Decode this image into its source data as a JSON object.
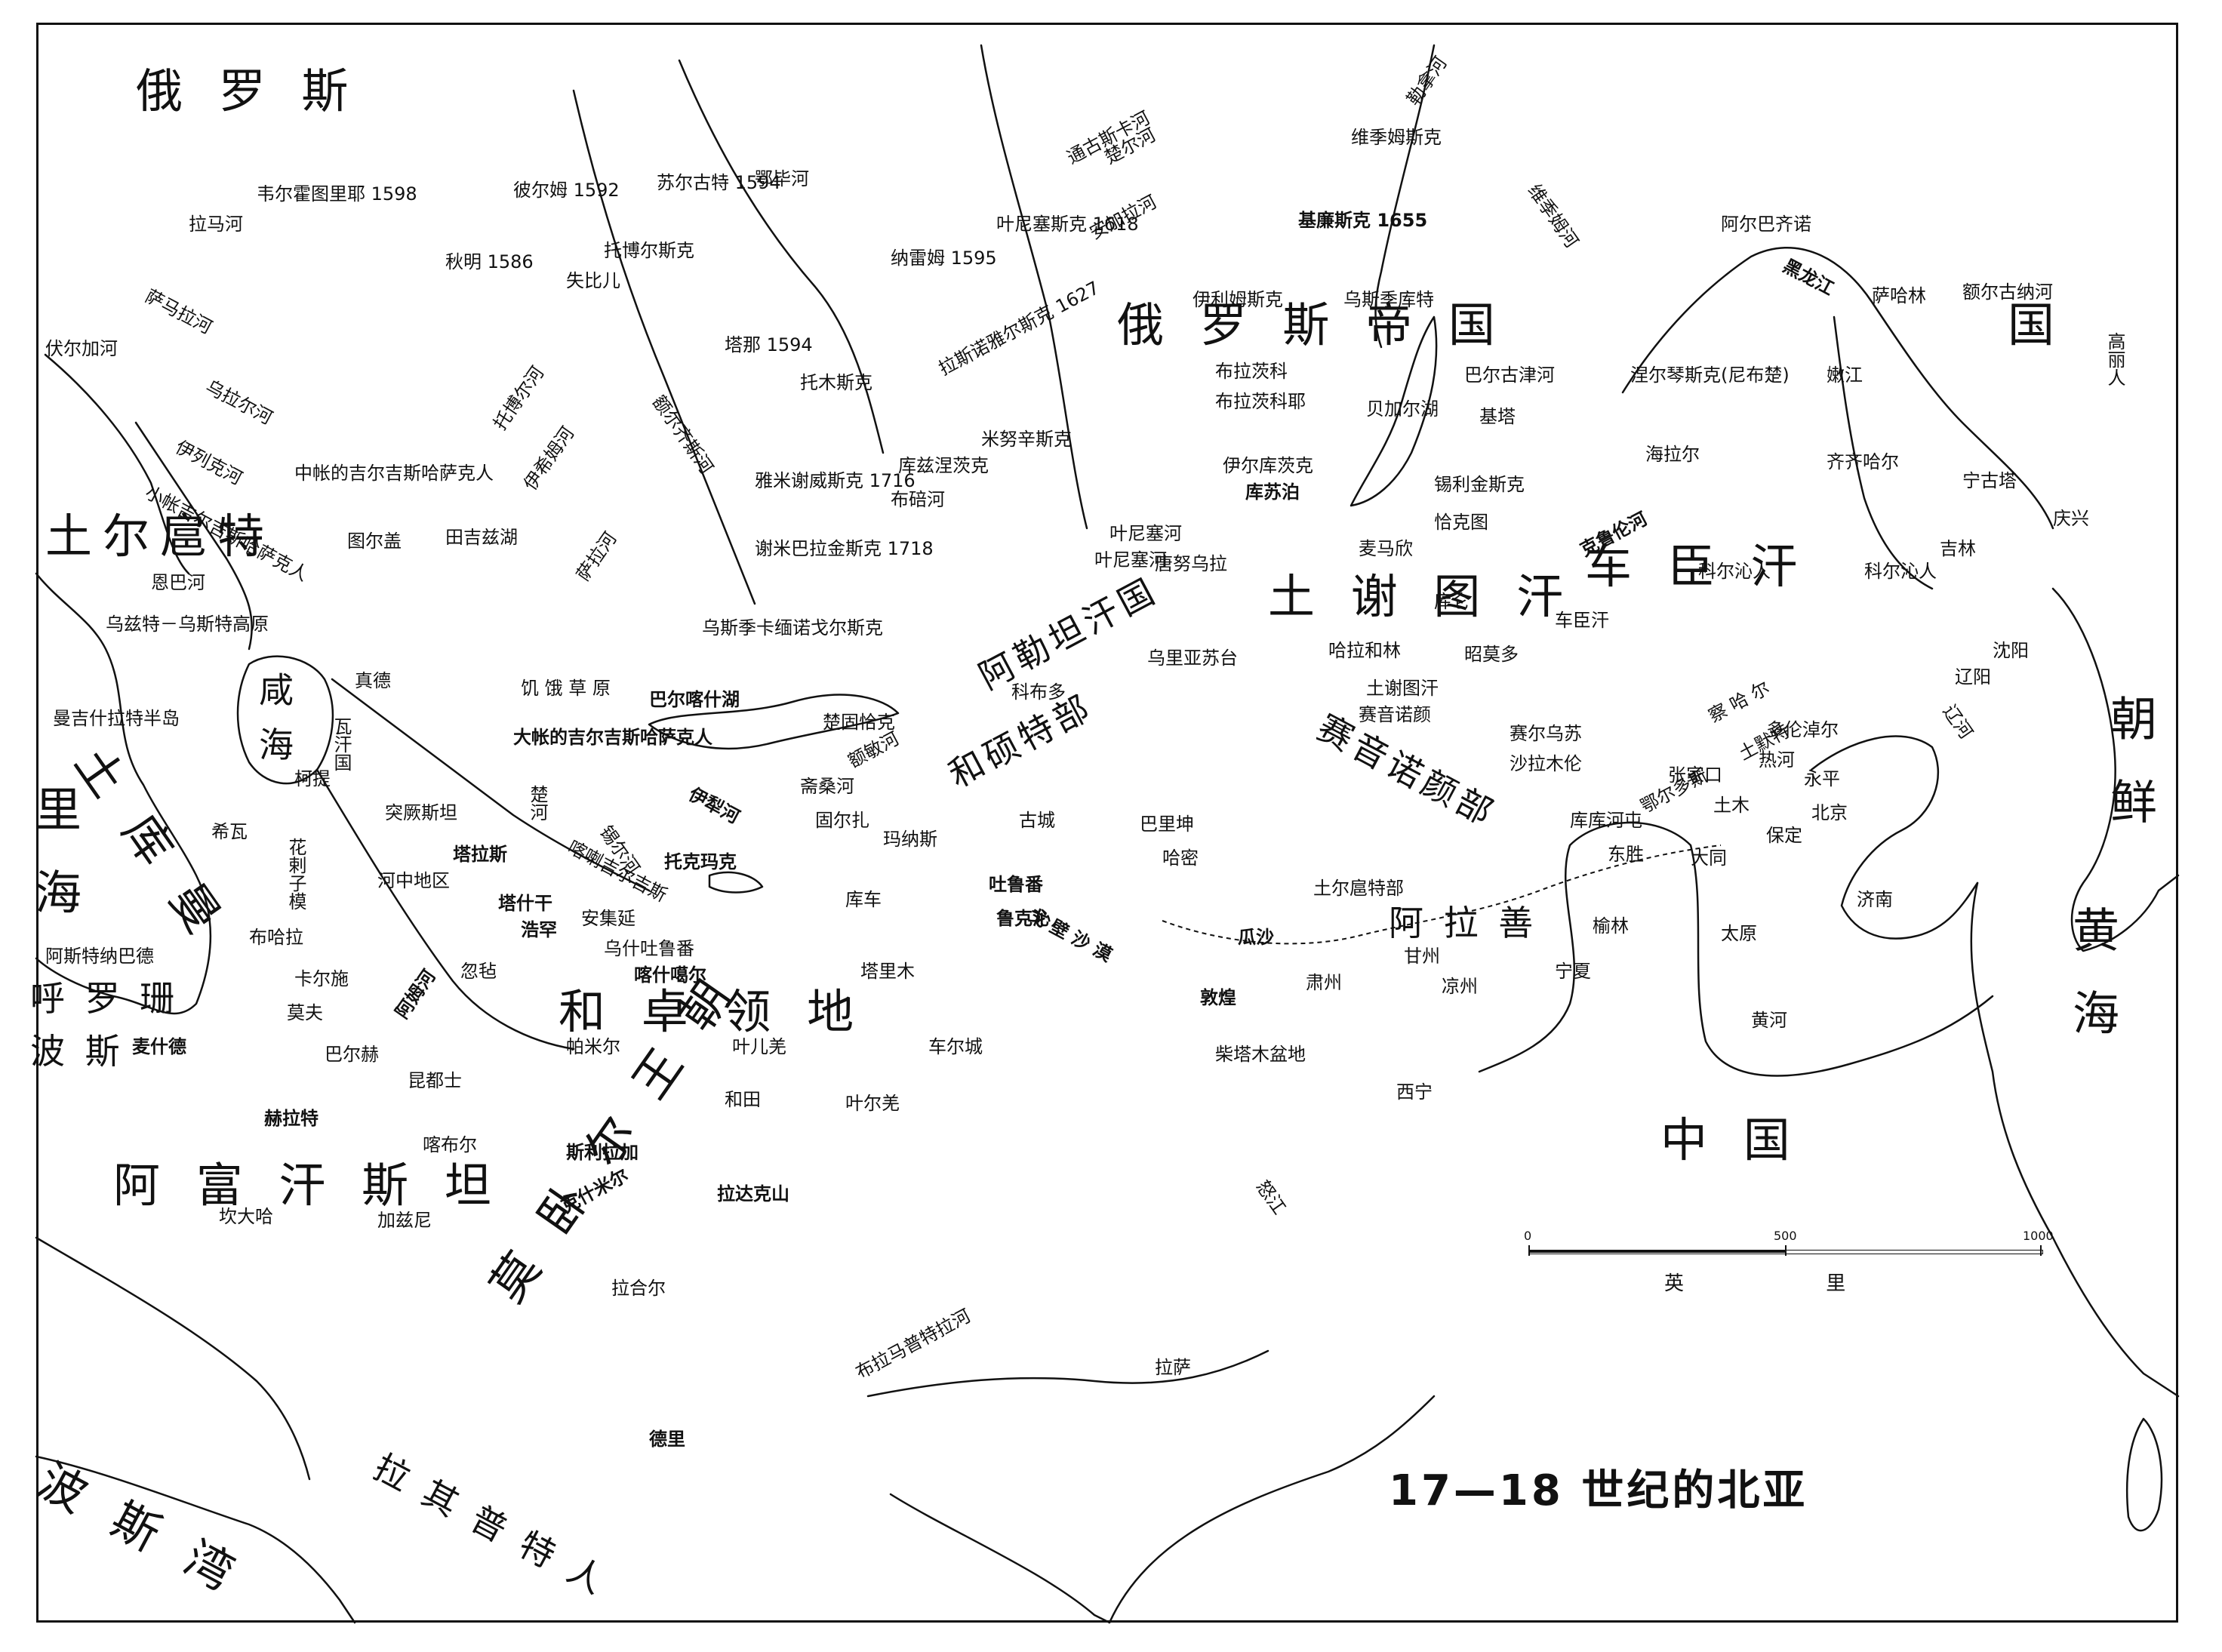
{
  "title": "17—18 世纪的北亚",
  "scale": {
    "ticks": [
      "0",
      "500",
      "1000"
    ],
    "unit": "英 里"
  },
  "regions": [
    {
      "id": "russia-nw",
      "text": "俄 罗 斯"
    },
    {
      "id": "russia-empire",
      "text": "俄 罗 斯 帝 国"
    },
    {
      "id": "qing-heilong",
      "text": "国"
    },
    {
      "id": "turgut",
      "text": "土尔扈特"
    },
    {
      "id": "chechen",
      "text": "车 臣 汗"
    },
    {
      "id": "tushetu",
      "text": "土 谢 图 汗"
    },
    {
      "id": "altan",
      "text": "阿勒坦汗国"
    },
    {
      "id": "khoshut",
      "text": "和硕特部"
    },
    {
      "id": "sayin",
      "text": "赛音诺颜部"
    },
    {
      "id": "kazakh-steppe",
      "text": "饥 饿 草 原"
    },
    {
      "id": "khojo",
      "text": "和 卓 领 地"
    },
    {
      "id": "turkmen",
      "text": "土 库 曼"
    },
    {
      "id": "khorasan",
      "text": "呼 罗 珊"
    },
    {
      "id": "persia-n",
      "text": "波 斯"
    },
    {
      "id": "afghan",
      "text": "阿 富 汗 斯 坦"
    },
    {
      "id": "mughal",
      "text": "莫 卧 尔 王 朝"
    },
    {
      "id": "rajput",
      "text": "拉 其 普 特 人"
    },
    {
      "id": "persian-gulf",
      "text": "波 斯 湾"
    },
    {
      "id": "china",
      "text": "中 国"
    },
    {
      "id": "korea",
      "text": "朝 鲜"
    },
    {
      "id": "yellow-sea",
      "text": "黄 海"
    },
    {
      "id": "caspian",
      "text": "里 海"
    },
    {
      "id": "aral",
      "text": "咸 海"
    },
    {
      "id": "gobi",
      "text": "戈 壁 沙 漠"
    },
    {
      "id": "alashan",
      "text": "阿 拉 善"
    },
    {
      "id": "chahar",
      "text": "察 哈 尔"
    },
    {
      "id": "ordos",
      "text": "鄂尔多斯"
    },
    {
      "id": "tumet",
      "text": "土默特"
    },
    {
      "id": "tsaidam",
      "text": "柴塔木盆地"
    },
    {
      "id": "khorchin",
      "text": "科尔沁人"
    },
    {
      "id": "korean-people",
      "text": "高丽人"
    }
  ],
  "rivers": [
    "拉马河",
    "伏尔加河",
    "萨马拉河",
    "乌拉尔河",
    "伊列克河",
    "托博尔河",
    "伊希姆河",
    "额尔齐斯河",
    "鄂毕河",
    "通古斯卡河",
    "安加拉河",
    "勒拿河",
    "维季姆河",
    "黑龙江",
    "额尔古纳河",
    "嫩江",
    "布拉茨科",
    "叶尼塞河",
    "库兹涅茨克",
    "布碚河",
    "伊犁河",
    "斋桑河",
    "额敏河",
    "楚河",
    "锡尔河",
    "阿姆河",
    "黄河",
    "怒江",
    "布拉马普特拉河",
    "萨拉河",
    "克鲁伦河",
    "辽河",
    "楚尔河"
  ],
  "places": [
    {
      "name": "韦尔霍图里耶 1598"
    },
    {
      "name": "彼尔姆 1592"
    },
    {
      "name": "苏尔古特 1594"
    },
    {
      "name": "秋明 1586"
    },
    {
      "name": "托博尔斯克"
    },
    {
      "name": "失比儿"
    },
    {
      "name": "纳雷姆 1595"
    },
    {
      "name": "叶尼塞斯克 1618"
    },
    {
      "name": "维季姆斯克"
    },
    {
      "name": "基廉斯克 1655"
    },
    {
      "name": "阿尔巴齐诺"
    },
    {
      "name": "萨哈林"
    },
    {
      "name": "伊利姆斯克"
    },
    {
      "name": "乌斯季库特"
    },
    {
      "name": "塔那 1594"
    },
    {
      "name": "拉斯诺雅尔斯克 1627"
    },
    {
      "name": "托木斯克"
    },
    {
      "name": "米努辛斯克"
    },
    {
      "name": "布拉茨科耶"
    },
    {
      "name": "巴尔古津河"
    },
    {
      "name": "基塔"
    },
    {
      "name": "涅尔琴斯克(尼布楚)"
    },
    {
      "name": "海拉尔"
    },
    {
      "name": "齐齐哈尔"
    },
    {
      "name": "宁古塔"
    },
    {
      "name": "吉林"
    },
    {
      "name": "庆兴"
    },
    {
      "name": "贝加尔湖"
    },
    {
      "name": "伊尔库茨克"
    },
    {
      "name": "库苏泊"
    },
    {
      "name": "锡利金斯克"
    },
    {
      "name": "恰克图"
    },
    {
      "name": "雅米谢威斯克 1716"
    },
    {
      "name": "谢米巴拉金斯克 1718"
    },
    {
      "name": "中帐的吉尔吉斯哈萨克人"
    },
    {
      "name": "小帐吉尔吉斯哈萨克人"
    },
    {
      "name": "田吉兹湖"
    },
    {
      "name": "图尔盖"
    },
    {
      "name": "恩巴河"
    },
    {
      "name": "乌兹特－乌斯特高原"
    },
    {
      "name": "曼吉什拉特半岛"
    },
    {
      "name": "真德"
    },
    {
      "name": "乌斯季卡缅诺戈尔斯克"
    },
    {
      "name": "叶尼塞河"
    },
    {
      "name": "唐努乌拉"
    },
    {
      "name": "麦马欣"
    },
    {
      "name": "库仑"
    },
    {
      "name": "哈拉和林"
    },
    {
      "name": "昭莫多"
    },
    {
      "name": "车臣汗"
    },
    {
      "name": "科尔沁人"
    },
    {
      "name": "沈阳"
    },
    {
      "name": "辽阳"
    },
    {
      "name": "巴尔喀什湖"
    },
    {
      "name": "大帐的吉尔吉斯哈萨克人"
    },
    {
      "name": "楚固恰克"
    },
    {
      "name": "科布多"
    },
    {
      "name": "乌里亚苏台"
    },
    {
      "name": "土谢图汗"
    },
    {
      "name": "赛音诺颜"
    },
    {
      "name": "赛尔乌苏"
    },
    {
      "name": "沙拉木伦"
    },
    {
      "name": "多伦淖尔"
    },
    {
      "name": "热河"
    },
    {
      "name": "张家口"
    },
    {
      "name": "永平"
    },
    {
      "name": "北京"
    },
    {
      "name": "土木"
    },
    {
      "name": "库库河屯"
    },
    {
      "name": "东胜"
    },
    {
      "name": "大同"
    },
    {
      "name": "保定"
    },
    {
      "name": "济南"
    },
    {
      "name": "太原"
    },
    {
      "name": "榆林"
    },
    {
      "name": "宁夏"
    },
    {
      "name": "凉州"
    },
    {
      "name": "甘州"
    },
    {
      "name": "肃州"
    },
    {
      "name": "瓜沙"
    },
    {
      "name": "敦煌"
    },
    {
      "name": "西宁"
    },
    {
      "name": "土尔扈特部"
    },
    {
      "name": "巴里坤"
    },
    {
      "name": "哈密"
    },
    {
      "name": "古城"
    },
    {
      "name": "吐鲁番"
    },
    {
      "name": "鲁克沁"
    },
    {
      "name": "玛纳斯"
    },
    {
      "name": "固尔扎"
    },
    {
      "name": "突厥斯坦"
    },
    {
      "name": "塔拉斯"
    },
    {
      "name": "托克玛克"
    },
    {
      "name": "喀喇吉尔吉斯"
    },
    {
      "name": "塔什干"
    },
    {
      "name": "浩罕"
    },
    {
      "name": "安集延"
    },
    {
      "name": "乌什吐鲁番"
    },
    {
      "name": "喀什噶尔"
    },
    {
      "name": "库车"
    },
    {
      "name": "塔里木"
    },
    {
      "name": "叶儿羌"
    },
    {
      "name": "和田"
    },
    {
      "name": "叶尔羌"
    },
    {
      "name": "车尔城"
    },
    {
      "name": "帕米尔"
    },
    {
      "name": "柯提"
    },
    {
      "name": "希瓦"
    },
    {
      "name": "河中地区"
    },
    {
      "name": "布哈拉"
    },
    {
      "name": "卡尔施"
    },
    {
      "name": "忽毡"
    },
    {
      "name": "阿斯特纳巴德"
    },
    {
      "name": "麦什德"
    },
    {
      "name": "莫夫"
    },
    {
      "name": "巴尔赫"
    },
    {
      "name": "昆都士"
    },
    {
      "name": "赫拉特"
    },
    {
      "name": "喀布尔"
    },
    {
      "name": "斯利拉加"
    },
    {
      "name": "克什米尔"
    },
    {
      "name": "拉达克山"
    },
    {
      "name": "坎大哈"
    },
    {
      "name": "加兹尼"
    },
    {
      "name": "拉合尔"
    },
    {
      "name": "德里"
    },
    {
      "name": "拉萨"
    },
    {
      "name": "瓦汗国"
    },
    {
      "name": "花剌子模"
    }
  ]
}
